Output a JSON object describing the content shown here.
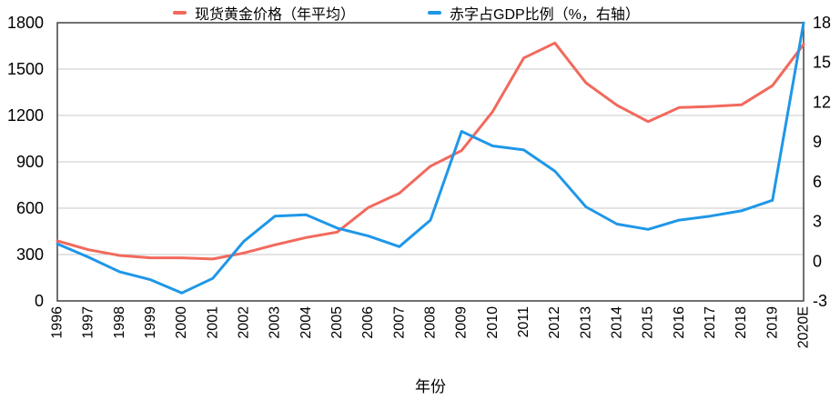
{
  "chart_data": {
    "type": "line",
    "title": "",
    "xlabel": "年份",
    "x_categories": [
      "1996",
      "1997",
      "1998",
      "1999",
      "2000",
      "2001",
      "2002",
      "2003",
      "2004",
      "2005",
      "2006",
      "2007",
      "2008",
      "2009",
      "2010",
      "2011",
      "2012",
      "2013",
      "2014",
      "2015",
      "2016",
      "2017",
      "2018",
      "2019",
      "2020E"
    ],
    "series": [
      {
        "name": "现货黄金价格（年平均）",
        "yaxis": "left",
        "color": "#f2695c",
        "values": [
          388,
          331,
          294,
          279,
          279,
          271,
          310,
          363,
          410,
          445,
          604,
          697,
          872,
          973,
          1225,
          1572,
          1669,
          1411,
          1266,
          1160,
          1251,
          1258,
          1269,
          1393,
          1660
        ]
      },
      {
        "name": "赤字占GDP比例（%，右轴）",
        "yaxis": "right",
        "color": "#1f97e8",
        "values": [
          1.3,
          0.3,
          -0.8,
          -1.4,
          -2.4,
          -1.3,
          1.5,
          3.4,
          3.5,
          2.5,
          1.9,
          1.1,
          3.1,
          9.8,
          8.7,
          8.4,
          6.8,
          4.1,
          2.8,
          2.4,
          3.1,
          3.4,
          3.8,
          4.6,
          18
        ]
      }
    ],
    "left_axis": {
      "min": 0,
      "max": 1800,
      "ticks": [
        0,
        300,
        600,
        900,
        1200,
        1500,
        1800
      ]
    },
    "right_axis": {
      "min": -3,
      "max": 18,
      "ticks": [
        -3,
        0,
        3,
        6,
        9,
        12,
        15,
        18
      ]
    },
    "grid": true,
    "legend_position": "top"
  },
  "colors": {
    "background": "#ffffff",
    "grid": "#c9c9c9",
    "axis_box": "#404040",
    "text": "#000000"
  }
}
